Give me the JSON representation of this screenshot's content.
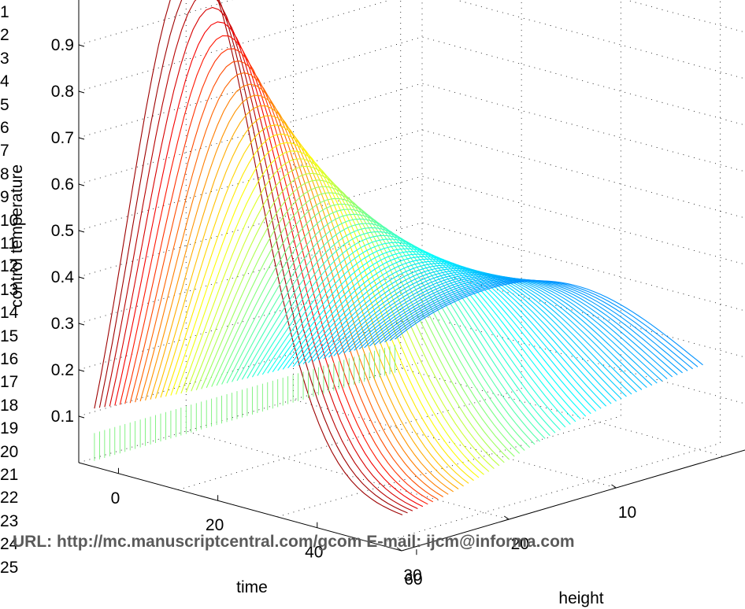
{
  "line_numbers": [
    "1",
    "2",
    "3",
    "4",
    "5",
    "6",
    "7",
    "8",
    "9",
    "10",
    "11",
    "12",
    "13",
    "14",
    "15",
    "16",
    "17",
    "18",
    "19",
    "20",
    "21",
    "22",
    "23",
    "24",
    "25"
  ],
  "footer": "URL: http://mc.manuscriptcentral.com/gcom E-mail: ijcm@informa.com",
  "colors": {
    "grid": "#000000",
    "base_lines": "#66ee66"
  },
  "chart_data": {
    "type": "3d-line-surface",
    "zlabel": "control temperature",
    "xlabel": "time",
    "ylabel": "height",
    "x_ticks": [
      "0",
      "20",
      "40",
      "60"
    ],
    "y_ticks": [
      "10",
      "20",
      "30"
    ],
    "z_ticks": [
      "0.1",
      "0.2",
      "0.3",
      "0.4",
      "0.5",
      "0.6",
      "0.7",
      "0.8",
      "0.9"
    ],
    "xlim": [
      0,
      65
    ],
    "ylim": [
      0,
      32
    ],
    "zlim": [
      0,
      1
    ],
    "colormap": "jet",
    "grid": true,
    "curves": 60
  }
}
